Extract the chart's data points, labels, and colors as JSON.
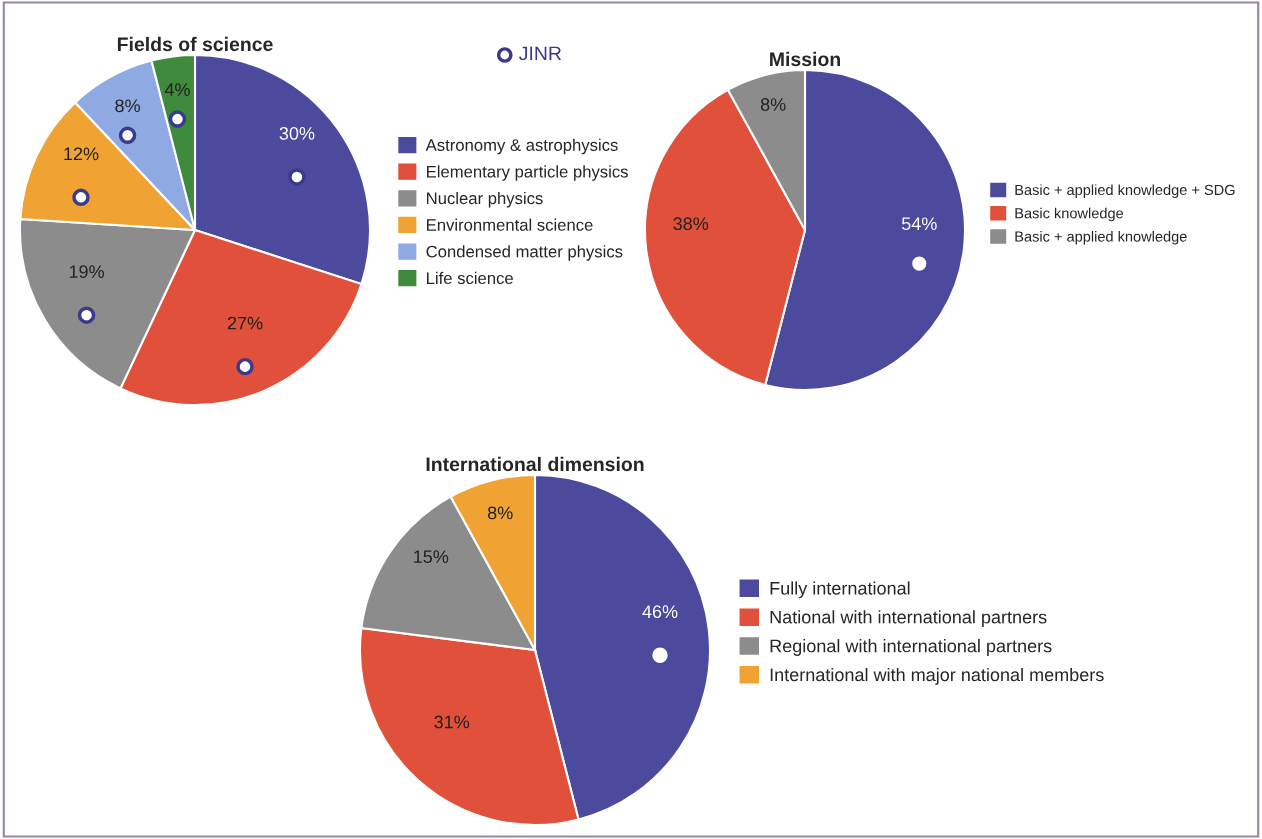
{
  "chart_data": [
    {
      "type": "pie",
      "title": "Fields of science",
      "legend": "right",
      "categories": [
        "Astronomy & astrophysics",
        "Elementary particle physics",
        "Nuclear physics",
        "Environmental science",
        "Condensed matter physics",
        "Life science"
      ],
      "values": [
        30,
        27,
        19,
        12,
        8,
        4
      ],
      "value_labels": [
        "30%",
        "27%",
        "19%",
        "12%",
        "8%",
        "4%"
      ],
      "colors": [
        "#4b4a9c",
        "#e0503a",
        "#8c8c8c",
        "#f0a232",
        "#8fa9e2",
        "#3f8a3c"
      ],
      "annotations": [
        "JINR"
      ]
    },
    {
      "type": "pie",
      "title": "Mission",
      "legend": "right",
      "categories": [
        "Basic + applied knowledge + SDG",
        "Basic knowledge",
        "Basic + applied knowledge"
      ],
      "values": [
        54,
        38,
        8
      ],
      "value_labels": [
        "54%",
        "38%",
        "8%"
      ],
      "colors": [
        "#4b4a9c",
        "#e0503a",
        "#8c8c8c"
      ]
    },
    {
      "type": "pie",
      "title": "International dimension",
      "legend": "right",
      "categories": [
        "Fully international",
        "National with international partners",
        "Regional with international partners",
        "International with major national members"
      ],
      "values": [
        46,
        31,
        15,
        8
      ],
      "value_labels": [
        "46%",
        "31%",
        "15%",
        "8%"
      ],
      "colors": [
        "#4b4a9c",
        "#e0503a",
        "#8c8c8c",
        "#f0a232"
      ]
    }
  ]
}
